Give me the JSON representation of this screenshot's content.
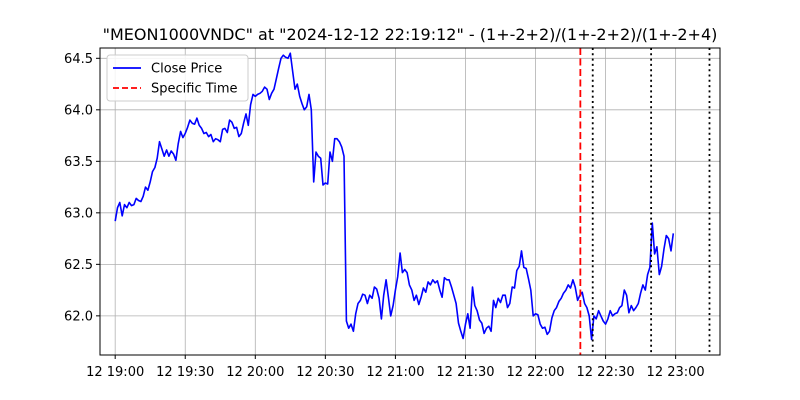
{
  "chart_data": {
    "type": "line",
    "title": "\"MEON1000VNDC\" at \"2024-12-12 22:19:12\" - (1+-2+2)/(1+-2+2)/(1+-2+4)",
    "xlabel": "",
    "ylabel": "",
    "x_ticks": [
      "12 19:00",
      "12 19:30",
      "12 20:00",
      "12 20:30",
      "12 21:00",
      "12 21:30",
      "12 22:00",
      "12 22:30",
      "12 23:00"
    ],
    "x_tick_minutes": [
      0,
      30,
      60,
      90,
      120,
      150,
      180,
      210,
      240
    ],
    "xlim_minutes": [
      -6.5,
      259
    ],
    "y_ticks": [
      "62.0",
      "62.5",
      "63.0",
      "63.5",
      "64.0",
      "64.5"
    ],
    "y_tick_values": [
      62.0,
      62.5,
      63.0,
      63.5,
      64.0,
      64.5
    ],
    "ylim": [
      61.62,
      64.6
    ],
    "grid": true,
    "legend_position": "top-left",
    "legend": [
      {
        "label": "Close Price",
        "color": "#0000ff",
        "style": "solid"
      },
      {
        "label": "Specific Time",
        "color": "#ff0000",
        "style": "dashed"
      }
    ],
    "series": [
      {
        "name": "Close Price",
        "color": "#0000ff",
        "points_minutes_value": [
          [
            0,
            62.92
          ],
          [
            1,
            63.05
          ],
          [
            2,
            63.1
          ],
          [
            3,
            62.97
          ],
          [
            4,
            63.08
          ],
          [
            5,
            63.05
          ],
          [
            6,
            63.1
          ],
          [
            7,
            63.07
          ],
          [
            8,
            63.08
          ],
          [
            9,
            63.14
          ],
          [
            10,
            63.12
          ],
          [
            11,
            63.11
          ],
          [
            12,
            63.16
          ],
          [
            13,
            63.25
          ],
          [
            14,
            63.22
          ],
          [
            15,
            63.3
          ],
          [
            16,
            63.4
          ],
          [
            17,
            63.44
          ],
          [
            18,
            63.53
          ],
          [
            19,
            63.69
          ],
          [
            20,
            63.62
          ],
          [
            21,
            63.55
          ],
          [
            22,
            63.61
          ],
          [
            23,
            63.55
          ],
          [
            24,
            63.6
          ],
          [
            25,
            63.57
          ],
          [
            26,
            63.51
          ],
          [
            27,
            63.67
          ],
          [
            28,
            63.79
          ],
          [
            29,
            63.73
          ],
          [
            30,
            63.77
          ],
          [
            31,
            63.83
          ],
          [
            32,
            63.9
          ],
          [
            33,
            63.87
          ],
          [
            34,
            63.86
          ],
          [
            35,
            63.92
          ],
          [
            36,
            63.85
          ],
          [
            37,
            63.82
          ],
          [
            38,
            63.77
          ],
          [
            39,
            63.78
          ],
          [
            40,
            63.74
          ],
          [
            41,
            63.76
          ],
          [
            42,
            63.69
          ],
          [
            43,
            63.72
          ],
          [
            44,
            63.71
          ],
          [
            45,
            63.69
          ],
          [
            46,
            63.81
          ],
          [
            47,
            63.82
          ],
          [
            48,
            63.78
          ],
          [
            49,
            63.9
          ],
          [
            50,
            63.88
          ],
          [
            51,
            63.82
          ],
          [
            52,
            63.83
          ],
          [
            53,
            63.74
          ],
          [
            54,
            63.77
          ],
          [
            55,
            63.87
          ],
          [
            56,
            63.96
          ],
          [
            57,
            63.85
          ],
          [
            58,
            64.05
          ],
          [
            59,
            64.15
          ],
          [
            60,
            64.13
          ],
          [
            61,
            64.15
          ],
          [
            62,
            64.16
          ],
          [
            63,
            64.18
          ],
          [
            64,
            64.22
          ],
          [
            65,
            64.2
          ],
          [
            66,
            64.1
          ],
          [
            67,
            64.16
          ],
          [
            68,
            64.2
          ],
          [
            69,
            64.3
          ],
          [
            70,
            64.4
          ],
          [
            71,
            64.5
          ],
          [
            72,
            64.53
          ],
          [
            73,
            64.51
          ],
          [
            74,
            64.5
          ],
          [
            75,
            64.55
          ],
          [
            76,
            64.37
          ],
          [
            77,
            64.2
          ],
          [
            78,
            64.25
          ],
          [
            79,
            64.13
          ],
          [
            80,
            64.06
          ],
          [
            81,
            64.0
          ],
          [
            82,
            64.03
          ],
          [
            83,
            64.15
          ],
          [
            84,
            64.0
          ],
          [
            85,
            63.3
          ],
          [
            86,
            63.59
          ],
          [
            87,
            63.55
          ],
          [
            88,
            63.53
          ],
          [
            89,
            63.27
          ],
          [
            90,
            63.29
          ],
          [
            91,
            63.28
          ],
          [
            92,
            63.59
          ],
          [
            93,
            63.5
          ],
          [
            94,
            63.72
          ],
          [
            95,
            63.72
          ],
          [
            96,
            63.69
          ],
          [
            97,
            63.64
          ],
          [
            98,
            63.55
          ],
          [
            99,
            61.95
          ],
          [
            100,
            61.88
          ],
          [
            101,
            61.92
          ],
          [
            102,
            61.85
          ],
          [
            103,
            62.02
          ],
          [
            104,
            62.12
          ],
          [
            105,
            62.15
          ],
          [
            106,
            62.21
          ],
          [
            107,
            62.2
          ],
          [
            108,
            62.12
          ],
          [
            109,
            62.2
          ],
          [
            110,
            62.17
          ],
          [
            111,
            62.28
          ],
          [
            112,
            62.26
          ],
          [
            113,
            62.17
          ],
          [
            114,
            61.97
          ],
          [
            115,
            62.2
          ],
          [
            116,
            62.35
          ],
          [
            117,
            62.18
          ],
          [
            118,
            62.0
          ],
          [
            119,
            62.1
          ],
          [
            120,
            62.25
          ],
          [
            121,
            62.38
          ],
          [
            122,
            62.61
          ],
          [
            123,
            62.42
          ],
          [
            124,
            62.45
          ],
          [
            125,
            62.42
          ],
          [
            126,
            62.3
          ],
          [
            127,
            62.25
          ],
          [
            128,
            62.15
          ],
          [
            129,
            62.2
          ],
          [
            130,
            62.11
          ],
          [
            131,
            62.18
          ],
          [
            132,
            62.27
          ],
          [
            133,
            62.23
          ],
          [
            134,
            62.33
          ],
          [
            135,
            62.3
          ],
          [
            136,
            62.35
          ],
          [
            137,
            62.32
          ],
          [
            138,
            62.34
          ],
          [
            139,
            62.25
          ],
          [
            140,
            62.18
          ],
          [
            141,
            62.37
          ],
          [
            142,
            62.35
          ],
          [
            143,
            62.35
          ],
          [
            144,
            62.28
          ],
          [
            145,
            62.2
          ],
          [
            146,
            62.12
          ],
          [
            147,
            61.93
          ],
          [
            148,
            61.85
          ],
          [
            149,
            61.78
          ],
          [
            150,
            61.92
          ],
          [
            151,
            62.02
          ],
          [
            152,
            61.88
          ],
          [
            153,
            62.28
          ],
          [
            154,
            62.1
          ],
          [
            155,
            62.05
          ],
          [
            156,
            61.96
          ],
          [
            157,
            61.93
          ],
          [
            158,
            61.83
          ],
          [
            159,
            61.88
          ],
          [
            160,
            61.9
          ],
          [
            161,
            61.85
          ],
          [
            162,
            62.15
          ],
          [
            163,
            62.08
          ],
          [
            164,
            62.17
          ],
          [
            165,
            62.13
          ],
          [
            166,
            62.2
          ],
          [
            167,
            62.2
          ],
          [
            168,
            62.08
          ],
          [
            169,
            62.12
          ],
          [
            170,
            62.28
          ],
          [
            171,
            62.27
          ],
          [
            172,
            62.44
          ],
          [
            173,
            62.48
          ],
          [
            174,
            62.63
          ],
          [
            175,
            62.47
          ],
          [
            176,
            62.46
          ],
          [
            177,
            62.36
          ],
          [
            178,
            62.25
          ],
          [
            179,
            62.0
          ],
          [
            180,
            62.02
          ],
          [
            181,
            62.01
          ],
          [
            182,
            61.92
          ],
          [
            183,
            61.88
          ],
          [
            184,
            61.89
          ],
          [
            185,
            61.82
          ],
          [
            186,
            61.85
          ],
          [
            187,
            61.98
          ],
          [
            188,
            62.05
          ],
          [
            189,
            62.08
          ],
          [
            190,
            62.14
          ],
          [
            191,
            62.17
          ],
          [
            192,
            62.22
          ],
          [
            193,
            62.25
          ],
          [
            194,
            62.3
          ],
          [
            195,
            62.27
          ],
          [
            196,
            62.35
          ],
          [
            197,
            62.28
          ],
          [
            198,
            62.15
          ],
          [
            199,
            62.2
          ],
          [
            200,
            62.23
          ],
          [
            201,
            62.12
          ],
          [
            202,
            62.08
          ],
          [
            203,
            62.0
          ],
          [
            204,
            61.77
          ],
          [
            205,
            62.0
          ],
          [
            206,
            61.97
          ],
          [
            207,
            62.05
          ],
          [
            208,
            62.0
          ],
          [
            209,
            61.95
          ],
          [
            210,
            61.92
          ],
          [
            211,
            61.97
          ],
          [
            212,
            62.05
          ],
          [
            213,
            62.0
          ],
          [
            214,
            62.02
          ],
          [
            215,
            62.03
          ],
          [
            216,
            62.08
          ],
          [
            217,
            62.1
          ],
          [
            218,
            62.25
          ],
          [
            219,
            62.2
          ],
          [
            220,
            62.03
          ],
          [
            221,
            62.1
          ],
          [
            222,
            62.05
          ],
          [
            223,
            62.08
          ],
          [
            224,
            62.12
          ],
          [
            225,
            62.22
          ],
          [
            226,
            62.3
          ],
          [
            227,
            62.25
          ],
          [
            228,
            62.4
          ],
          [
            229,
            62.47
          ],
          [
            230,
            62.9
          ],
          [
            231,
            62.6
          ],
          [
            232,
            62.67
          ],
          [
            233,
            62.4
          ],
          [
            234,
            62.48
          ],
          [
            235,
            62.65
          ],
          [
            236,
            62.78
          ],
          [
            237,
            62.75
          ],
          [
            238,
            62.63
          ],
          [
            239,
            62.8
          ]
        ]
      }
    ],
    "vertical_lines": [
      {
        "minutes": 199.2,
        "color": "#ff0000",
        "style": "dashed"
      },
      {
        "minutes": 204.5,
        "color": "#000000",
        "style": "dotted"
      },
      {
        "minutes": 229.5,
        "color": "#000000",
        "style": "dotted"
      },
      {
        "minutes": 254.5,
        "color": "#000000",
        "style": "dotted"
      }
    ]
  }
}
